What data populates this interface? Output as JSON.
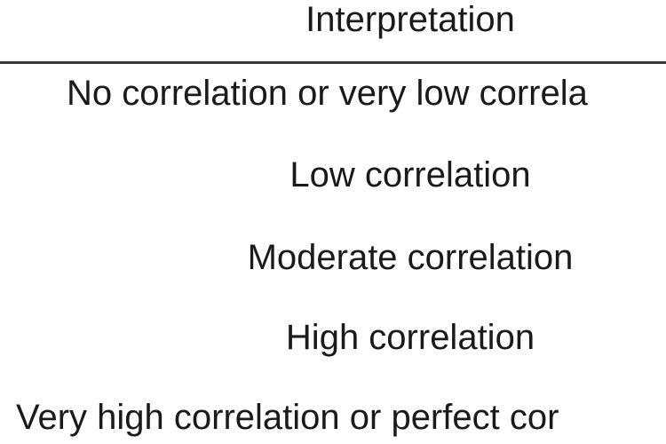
{
  "table": {
    "header": "Interpretation",
    "rows": [
      "No correlation or very low correla",
      "Low correlation",
      "Moderate correlation",
      "High correlation",
      "Very high correlation or perfect cor"
    ]
  }
}
